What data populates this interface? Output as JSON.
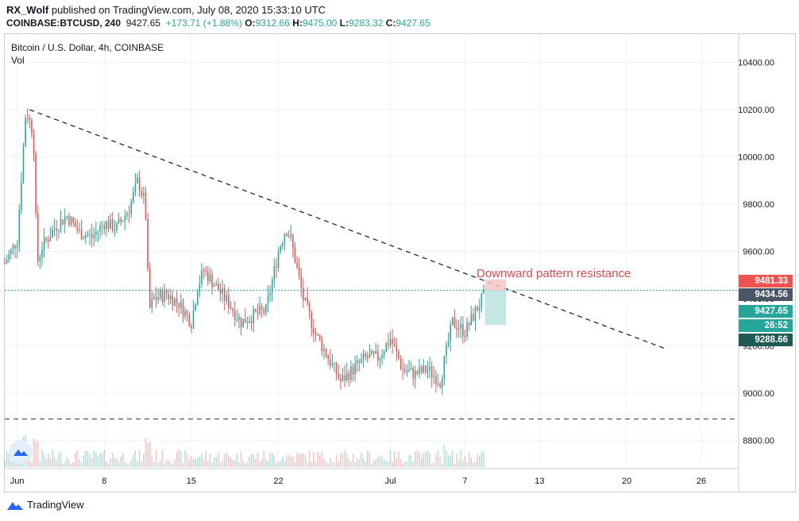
{
  "header": {
    "author": "RX_Wolf",
    "published": "published on TradingView.com, July 08, 2020 15:33:10 UTC",
    "symbol": "COINBASE:BTCUSD, 240",
    "last": "9427.65",
    "change": "+173.71 (+1.88%)",
    "o_label": "O:",
    "o": "9312.66",
    "h_label": "H:",
    "h": "9475.00",
    "l_label": "L:",
    "l": "9283.32",
    "c_label": "C:",
    "c": "9427.65"
  },
  "legend": {
    "title": "Bitcoin / U.S. Dollar, 4h, COINBASE",
    "volume": "Vol"
  },
  "annotation": "Downward pattern resistance",
  "price_labels": {
    "target": "9481.33",
    "level": "9434.56",
    "last": "9427.65",
    "countdown": "26:52",
    "stop": "9288.66"
  },
  "footer": {
    "brand": "TradingView"
  },
  "colors": {
    "up": "#26a69a",
    "down": "#ef5350",
    "grid": "#f0f3fa",
    "target": "#ef5350",
    "level": "#4a5568",
    "last": "#26a69a",
    "stop": "#1f5b54"
  },
  "chart_data": {
    "type": "candlestick",
    "title": "Bitcoin / U.S. Dollar, 4h, COINBASE",
    "y_ticks": [
      8800,
      9000,
      9200,
      9400,
      9600,
      9800,
      10000,
      10200,
      10400
    ],
    "y_tick_labels": [
      "8800.00",
      "9000.00",
      "9200.00",
      "9400.00",
      "9600.00",
      "9800.00",
      "10000.00",
      "10200.00",
      "10400.00"
    ],
    "ylim": [
      8680,
      10520
    ],
    "x_ticks": [
      "Jun",
      "8",
      "15",
      "22",
      "Jul",
      "7",
      "13",
      "20",
      "26"
    ],
    "xlim": [
      "2020-05-31",
      "2020-07-29"
    ],
    "price_anchors": [
      {
        "d": "2020-05-31",
        "p": 9550
      },
      {
        "d": "2020-06-01",
        "p": 9650
      },
      {
        "d": "2020-06-01.7",
        "p": 10200
      },
      {
        "d": "2020-06-02.3",
        "p": 10100
      },
      {
        "d": "2020-06-02.6",
        "p": 9550
      },
      {
        "d": "2020-06-03",
        "p": 9620
      },
      {
        "d": "2020-06-04",
        "p": 9700
      },
      {
        "d": "2020-06-05",
        "p": 9750
      },
      {
        "d": "2020-06-06",
        "p": 9680
      },
      {
        "d": "2020-06-07",
        "p": 9660
      },
      {
        "d": "2020-06-08",
        "p": 9720
      },
      {
        "d": "2020-06-09",
        "p": 9700
      },
      {
        "d": "2020-06-10",
        "p": 9780
      },
      {
        "d": "2020-06-10.7",
        "p": 9900
      },
      {
        "d": "2020-06-11.3",
        "p": 9800
      },
      {
        "d": "2020-06-11.6",
        "p": 9350
      },
      {
        "d": "2020-06-12",
        "p": 9400
      },
      {
        "d": "2020-06-13",
        "p": 9420
      },
      {
        "d": "2020-06-14",
        "p": 9380
      },
      {
        "d": "2020-06-15",
        "p": 9300
      },
      {
        "d": "2020-06-15.5",
        "p": 9450
      },
      {
        "d": "2020-06-16",
        "p": 9520
      },
      {
        "d": "2020-06-17",
        "p": 9450
      },
      {
        "d": "2020-06-18",
        "p": 9380
      },
      {
        "d": "2020-06-19",
        "p": 9300
      },
      {
        "d": "2020-06-20",
        "p": 9330
      },
      {
        "d": "2020-06-21",
        "p": 9350
      },
      {
        "d": "2020-06-22",
        "p": 9600
      },
      {
        "d": "2020-06-22.6",
        "p": 9700
      },
      {
        "d": "2020-06-23",
        "p": 9650
      },
      {
        "d": "2020-06-24",
        "p": 9400
      },
      {
        "d": "2020-06-25",
        "p": 9250
      },
      {
        "d": "2020-06-26",
        "p": 9150
      },
      {
        "d": "2020-06-27",
        "p": 9050
      },
      {
        "d": "2020-06-28",
        "p": 9100
      },
      {
        "d": "2020-06-29",
        "p": 9150
      },
      {
        "d": "2020-06-30",
        "p": 9150
      },
      {
        "d": "2020-07-01",
        "p": 9230
      },
      {
        "d": "2020-07-02",
        "p": 9100
      },
      {
        "d": "2020-07-03",
        "p": 9080
      },
      {
        "d": "2020-07-04",
        "p": 9100
      },
      {
        "d": "2020-07-05",
        "p": 9050
      },
      {
        "d": "2020-07-06",
        "p": 9300
      },
      {
        "d": "2020-07-07",
        "p": 9260
      },
      {
        "d": "2020-07-08.6",
        "p": 9420
      }
    ],
    "trendline": {
      "from": {
        "d": "2020-06-02",
        "p": 10200
      },
      "to": {
        "d": "2020-07-23",
        "p": 9190
      }
    },
    "support_line": 8890,
    "price_line": 9434.56,
    "position": {
      "start": "2020-07-08.6",
      "end": "2020-07-10.3",
      "entry": 9434.56,
      "target": 9481.33,
      "stop": 9288.66
    }
  }
}
